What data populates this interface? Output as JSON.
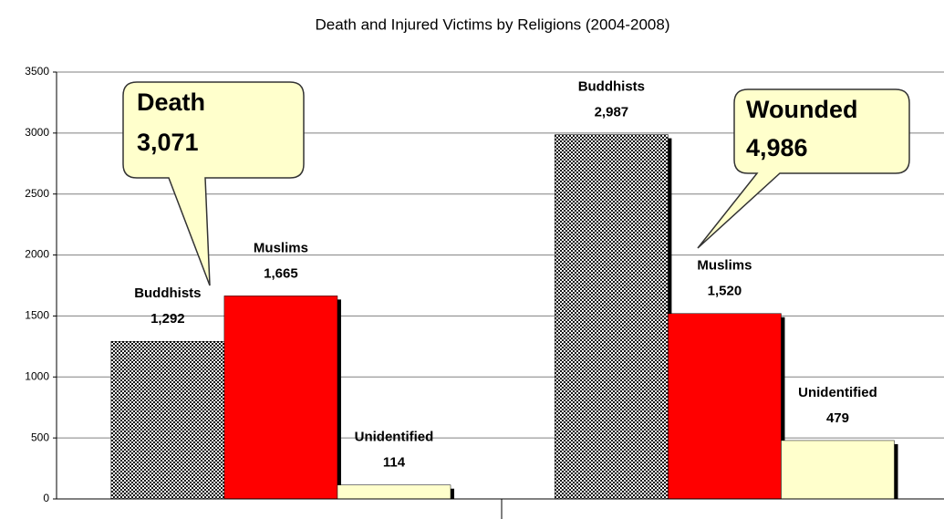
{
  "chart_data": {
    "type": "bar",
    "title": "Death and Injured Victims by Religions (2004-2008)",
    "categories": [
      null,
      null
    ],
    "series": [
      {
        "name": "Buddhists",
        "color": "#000000",
        "pattern": "dots",
        "values": [
          1292,
          2987
        ],
        "value_labels": [
          "1,292",
          "2,987"
        ]
      },
      {
        "name": "Muslims",
        "color": "#ff0000",
        "values": [
          1665,
          1520
        ],
        "value_labels": [
          "1,665",
          "1,520"
        ]
      },
      {
        "name": "Unidentified",
        "color": "#ffffcc",
        "values": [
          114,
          479
        ],
        "value_labels": [
          "114",
          "479"
        ]
      }
    ],
    "annotations": [
      {
        "title": "Death",
        "text": "3,071"
      },
      {
        "title": "Wounded",
        "text": "4,986"
      }
    ],
    "ylim": [
      0,
      3500
    ],
    "yticks": [
      0,
      500,
      1000,
      1500,
      2000,
      2500,
      3000,
      3500
    ],
    "grid": true
  }
}
